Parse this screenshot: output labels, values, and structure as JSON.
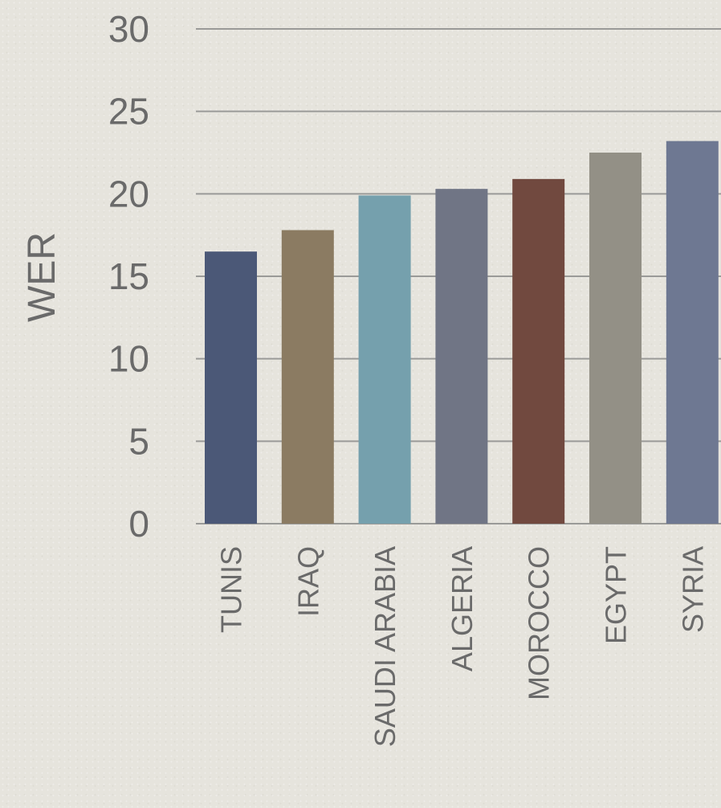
{
  "chart_data": {
    "type": "bar",
    "title": "",
    "xlabel": "",
    "ylabel": "WER",
    "ylim": [
      0,
      30
    ],
    "yticks": [
      0,
      5,
      10,
      15,
      20,
      25,
      30
    ],
    "grid": true,
    "categories": [
      "TUNIS",
      "IRAQ",
      "SAUDI ARABIA",
      "ALGERIA",
      "MOROCCO",
      "EGYPT",
      "SYRIA"
    ],
    "values": [
      16.5,
      17.8,
      19.9,
      20.3,
      20.9,
      22.5,
      23.2
    ],
    "colors": [
      "#4b5877",
      "#8b7b62",
      "#75a0ad",
      "#707585",
      "#71493f",
      "#939086",
      "#6e7892"
    ]
  }
}
